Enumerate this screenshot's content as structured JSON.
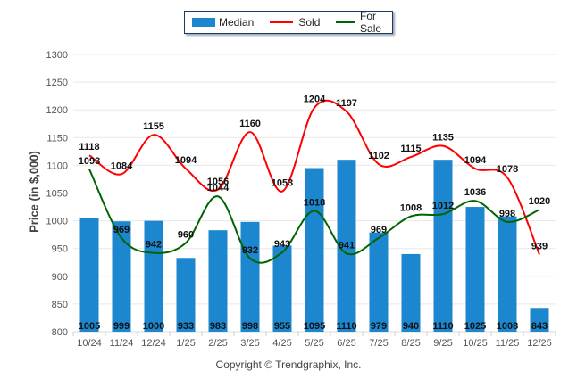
{
  "chart_data": {
    "type": "bar",
    "title": "",
    "xlabel": "",
    "ylabel": "Price (in $,000)",
    "ylim": [
      800,
      1300
    ],
    "yticks": [
      800,
      850,
      900,
      950,
      1000,
      1050,
      1100,
      1150,
      1200,
      1250,
      1300
    ],
    "grid": true,
    "legend": {
      "placement": "top-center",
      "entries": [
        "Median",
        "Sold",
        "For Sale"
      ]
    },
    "categories": [
      "10/24",
      "11/24",
      "12/24",
      "1/25",
      "2/25",
      "3/25",
      "4/25",
      "5/25",
      "6/25",
      "7/25",
      "8/25",
      "9/25",
      "10/25",
      "11/25",
      "12/25"
    ],
    "series": [
      {
        "name": "Median",
        "kind": "bar",
        "color": "#1c87cf",
        "values": [
          1005,
          999,
          1000,
          933,
          983,
          998,
          955,
          1095,
          1110,
          979,
          940,
          1110,
          1025,
          1008,
          843
        ]
      },
      {
        "name": "Sold",
        "kind": "line",
        "color": "#ff0000",
        "values": [
          1118,
          1084,
          1155,
          1094,
          1056,
          1160,
          1053,
          1204,
          1197,
          1102,
          1115,
          1135,
          1094,
          1078,
          939
        ]
      },
      {
        "name": "For Sale",
        "kind": "line",
        "color": "#006400",
        "values": [
          1093,
          969,
          942,
          960,
          1044,
          932,
          943,
          1018,
          941,
          969,
          1008,
          1012,
          1036,
          998,
          1020
        ]
      }
    ],
    "footer": "Copyright © Trendgraphix, Inc."
  }
}
